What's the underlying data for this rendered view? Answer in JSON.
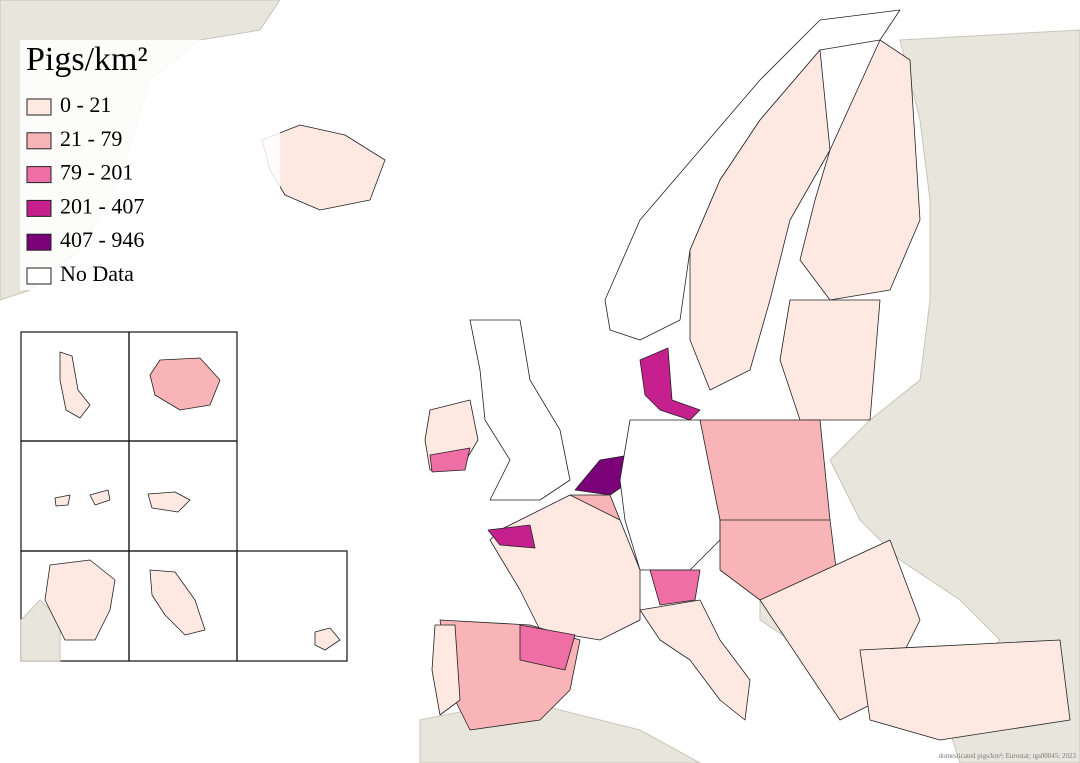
{
  "title": "Pigs/km²",
  "legend": [
    {
      "label": "0 - 21",
      "color": "#fde8e2"
    },
    {
      "label": "21 - 79",
      "color": "#f8b4b6"
    },
    {
      "label": "79 - 201",
      "color": "#ef6ea6"
    },
    {
      "label": "201 - 407",
      "color": "#c61f8e"
    },
    {
      "label": "407 - 946",
      "color": "#7b0179"
    },
    {
      "label": "No Data",
      "color": "#ffffff"
    }
  ],
  "credit": "domesticated pigs/km²; Eurostat; tgs00045; 2023"
}
